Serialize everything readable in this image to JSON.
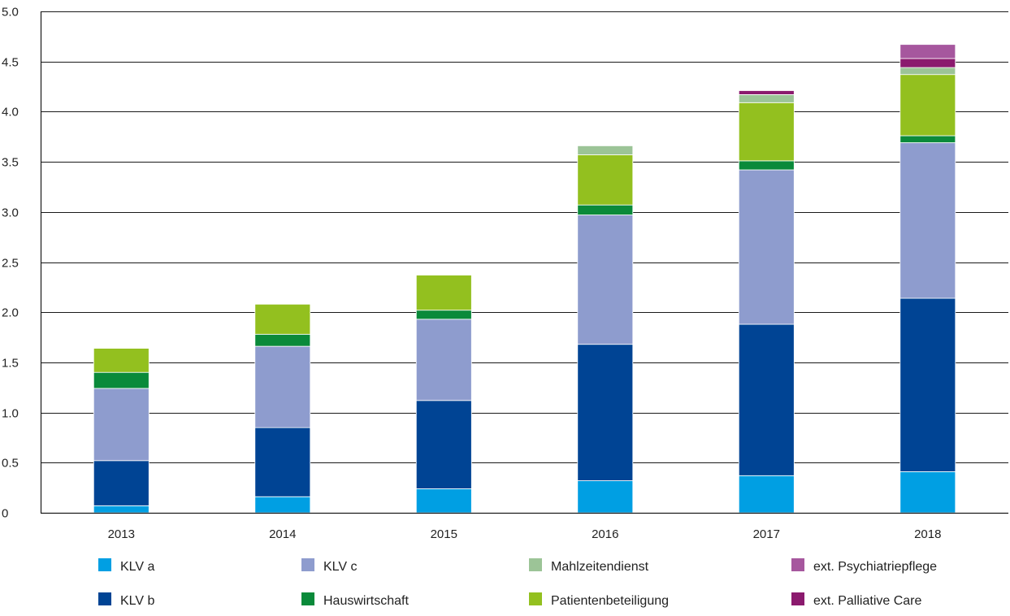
{
  "chart_data": {
    "type": "bar",
    "stacked": true,
    "categories": [
      "2013",
      "2014",
      "2015",
      "2016",
      "2017",
      "2018"
    ],
    "ylim": [
      0,
      5.0
    ],
    "yticks": [
      "0",
      "0.5",
      "1.0",
      "1.5",
      "2.0",
      "2.5",
      "3.0",
      "3.5",
      "4.0",
      "4.5",
      "5.0"
    ],
    "grid": true,
    "legend_placement": "bottom",
    "series": [
      {
        "name": "KLV a",
        "color": "#009fe3",
        "values": [
          0.07,
          0.16,
          0.24,
          0.32,
          0.37,
          0.41
        ]
      },
      {
        "name": "KLV b",
        "color": "#004494",
        "values": [
          0.45,
          0.69,
          0.88,
          1.36,
          1.51,
          1.73
        ]
      },
      {
        "name": "KLV c",
        "color": "#8e9cce",
        "values": [
          0.72,
          0.81,
          0.81,
          1.29,
          1.54,
          1.55
        ]
      },
      {
        "name": "Hauswirtschaft",
        "color": "#0a8a3a",
        "values": [
          0.16,
          0.12,
          0.09,
          0.1,
          0.09,
          0.07
        ]
      },
      {
        "name": "Patientenbeteiligung",
        "color": "#93c01f",
        "values": [
          0.24,
          0.3,
          0.35,
          0.5,
          0.58,
          0.61
        ]
      },
      {
        "name": "Mahlzeitendienst",
        "color": "#9cc497",
        "values": [
          0,
          0,
          0,
          0.09,
          0.08,
          0.07
        ]
      },
      {
        "name": "ext. Palliative Care",
        "color": "#8b1a6e",
        "values": [
          0,
          0,
          0,
          0,
          0.04,
          0.09
        ]
      },
      {
        "name": "ext. Psychiatriepflege",
        "color": "#a6579e",
        "values": [
          0,
          0,
          0,
          0,
          0,
          0.14
        ]
      }
    ],
    "legend_order": [
      "KLV a",
      "KLV c",
      "Mahlzeitendienst",
      "ext. Psychiatriepflege",
      "KLV b",
      "Hauswirtschaft",
      "Patientenbeteiligung",
      "ext. Palliative Care"
    ]
  }
}
